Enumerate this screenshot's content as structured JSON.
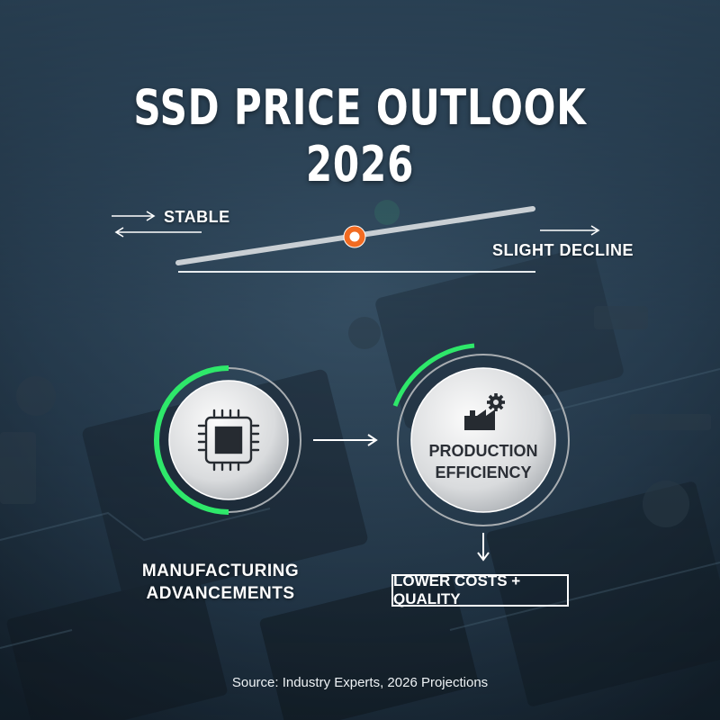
{
  "title": "SSD PRICE OUTLOOK 2026",
  "scale": {
    "left_label": "STABLE",
    "right_label": "SLIGHT DECLINE",
    "indicator_color": "#f26b21"
  },
  "steps": [
    {
      "label": "MANUFACTURING ADVANCEMENTS",
      "icon": "microchip-icon"
    },
    {
      "label": "PRODUCTION EFFICIENCY",
      "icon": "factory-gear-icon"
    }
  ],
  "result": "LOWER COSTS + QUALITY",
  "source": "Source: Industry Experts, 2026 Projections",
  "colors": {
    "accent": "#2ee86a",
    "circle_fill": "#e4e5e7",
    "background": "#1d2d3b"
  }
}
